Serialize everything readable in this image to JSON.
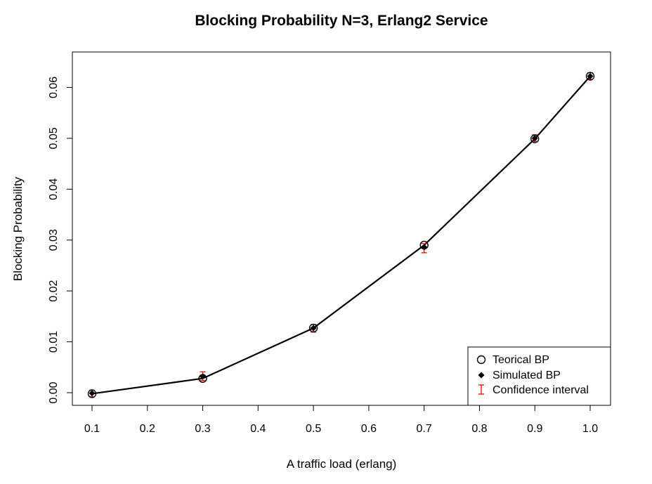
{
  "chart_data": {
    "type": "line",
    "title": "Blocking Probability N=3, Erlang2 Service",
    "xlabel": "A traffic load (erlang)",
    "ylabel": "Blocking Probability",
    "xlim": [
      0.1,
      1.0
    ],
    "ylim": [
      0.0,
      0.062
    ],
    "x_ticks": [
      0.1,
      0.2,
      0.3,
      0.4,
      0.5,
      0.6,
      0.7,
      0.8,
      0.9,
      1.0
    ],
    "x_tick_labels": [
      "0.1",
      "0.2",
      "0.3",
      "0.4",
      "0.5",
      "0.6",
      "0.7",
      "0.8",
      "0.9",
      "1.0"
    ],
    "y_ticks": [
      0.0,
      0.01,
      0.02,
      0.03,
      0.04,
      0.05,
      0.06
    ],
    "y_tick_labels": [
      "0.00",
      "0.01",
      "0.02",
      "0.03",
      "0.04",
      "0.05",
      "0.06"
    ],
    "grid": false,
    "legend_position": "bottom-right",
    "x": [
      0.1,
      0.3,
      0.5,
      0.7,
      0.9,
      1.0
    ],
    "series": [
      {
        "name": "Teorical BP",
        "marker": "open-circle",
        "values": [
          -0.0002,
          0.0028,
          0.0127,
          0.029,
          0.0499,
          0.0622
        ]
      },
      {
        "name": "Simulated BP",
        "marker": "filled-diamond",
        "values": [
          -0.0001,
          0.0032,
          0.0127,
          0.0286,
          0.05,
          0.0622
        ]
      },
      {
        "name": "Confidence interval",
        "marker": "error-bar",
        "lower": [
          -0.0008,
          0.0024,
          0.0119,
          0.0275,
          0.0494,
          0.0616
        ],
        "upper": [
          0.0005,
          0.0041,
          0.0134,
          0.0293,
          0.0507,
          0.0629
        ]
      }
    ],
    "colors": {
      "line": "#000000",
      "marker": "#000000",
      "error_bar": "#ff0000"
    }
  }
}
